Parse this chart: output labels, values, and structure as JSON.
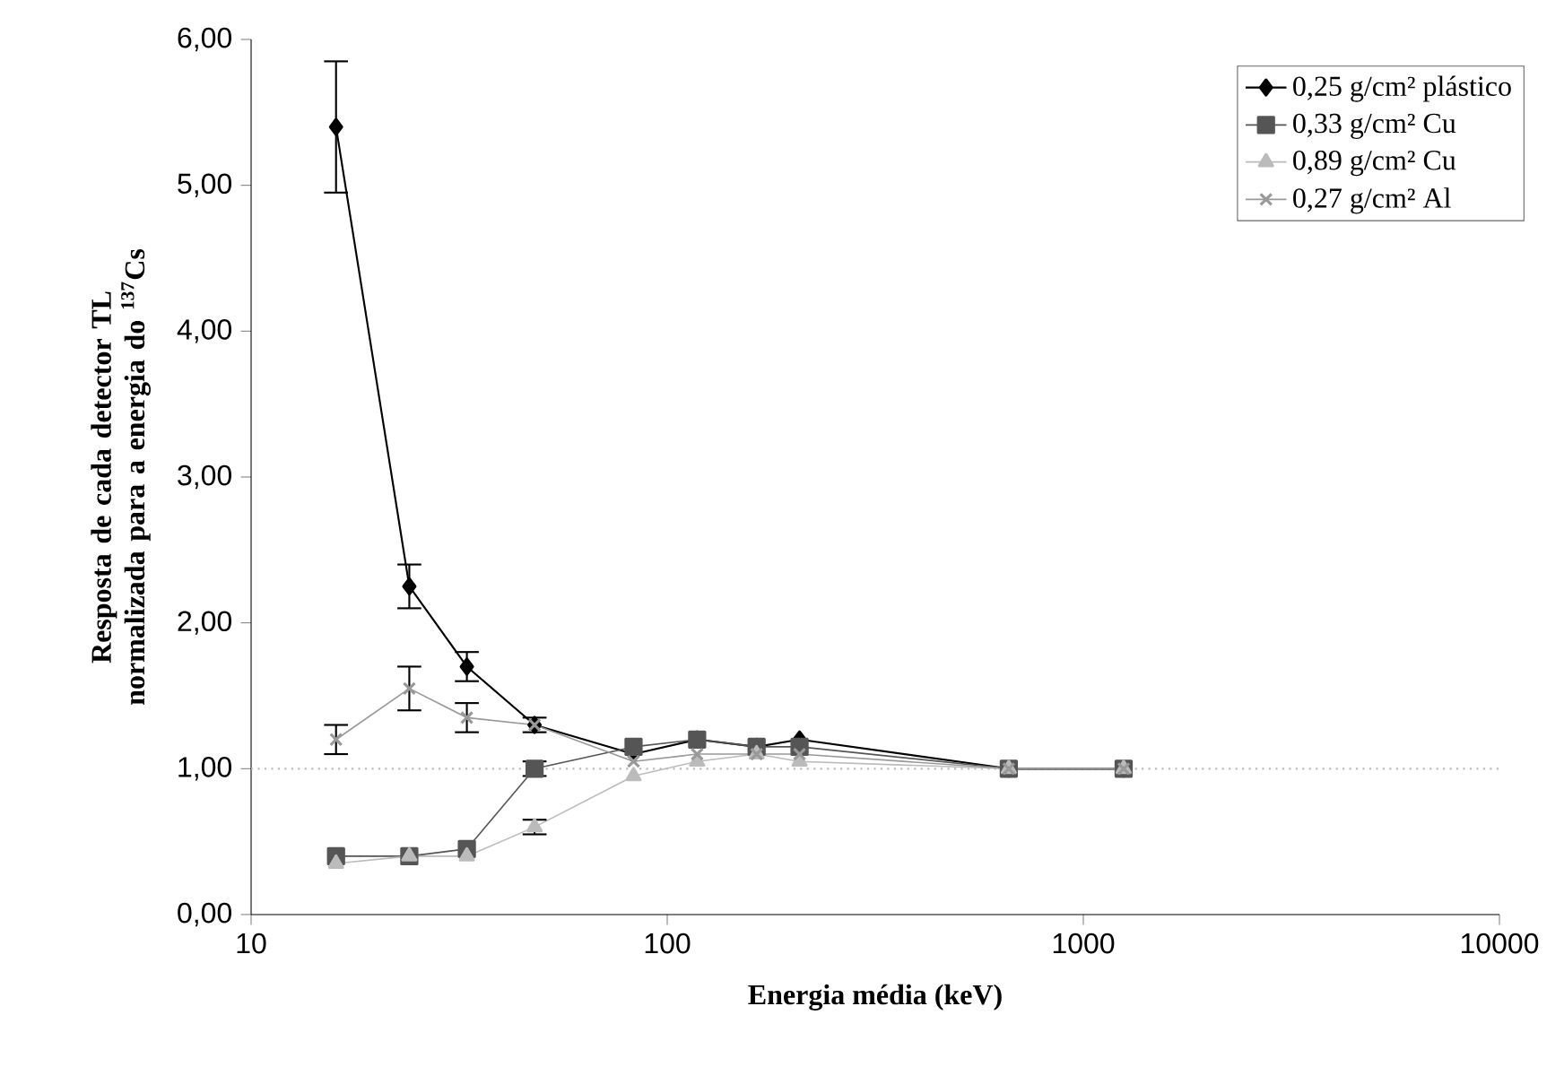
{
  "chart_data": {
    "type": "line",
    "xlabel": "Energia média (keV)",
    "ylabel": "Resposta de cada detector TL normalizada para a energia do $^{137}$Cs",
    "log": "x",
    "x": [
      16,
      24,
      33,
      48,
      83,
      118,
      164,
      208,
      662,
      1250
    ],
    "xlim": [
      10,
      10000
    ],
    "xticks": [
      10,
      100,
      1000,
      10000
    ],
    "ylim": [
      0,
      6
    ],
    "yticks": [
      {
        "value": 0,
        "label": "0,00"
      },
      {
        "value": 1,
        "label": "1,00"
      },
      {
        "value": 2,
        "label": "2,00"
      },
      {
        "value": 3,
        "label": "3,00"
      },
      {
        "value": 4,
        "label": "4,00"
      },
      {
        "value": 5,
        "label": "5,00"
      },
      {
        "value": 6,
        "label": "6,00"
      }
    ],
    "legend": "top right",
    "series": [
      {
        "name": "0,25 g/cm² plástico",
        "color": "#000000",
        "marker": "diamond",
        "values": [
          5.4,
          2.25,
          1.7,
          1.3,
          1.1,
          1.2,
          1.15,
          1.2,
          1.0,
          1.0
        ],
        "errors": [
          0.45,
          0.15,
          0.1,
          0.05,
          null,
          null,
          null,
          null,
          null,
          null
        ]
      },
      {
        "name": "0,33 g/cm² Cu",
        "color": "#555555",
        "marker": "square",
        "values": [
          0.4,
          0.4,
          0.45,
          1.0,
          1.15,
          1.2,
          1.15,
          1.15,
          1.0,
          1.0
        ],
        "errors": [
          null,
          null,
          null,
          0.05,
          null,
          null,
          null,
          null,
          null,
          null
        ]
      },
      {
        "name": "0,89 g/cm² Cu",
        "color": "#bbbbbb",
        "marker": "triangle",
        "values": [
          0.35,
          0.4,
          0.4,
          0.6,
          0.95,
          1.05,
          1.1,
          1.05,
          1.0,
          1.0
        ],
        "errors": [
          null,
          null,
          null,
          0.05,
          null,
          null,
          null,
          null,
          null,
          null
        ]
      },
      {
        "name": "0,27 g/cm² Al",
        "color": "#999999",
        "marker": "cross",
        "values": [
          1.2,
          1.55,
          1.35,
          1.3,
          1.05,
          1.1,
          1.1,
          1.1,
          1.0,
          1.0
        ],
        "errors": [
          0.1,
          0.15,
          0.1,
          null,
          null,
          null,
          null,
          null,
          null,
          null
        ]
      }
    ],
    "ref_lines": [
      {
        "axis": "y",
        "value": 1,
        "color": "#bbbbbb",
        "line_style": "dotted"
      }
    ]
  }
}
